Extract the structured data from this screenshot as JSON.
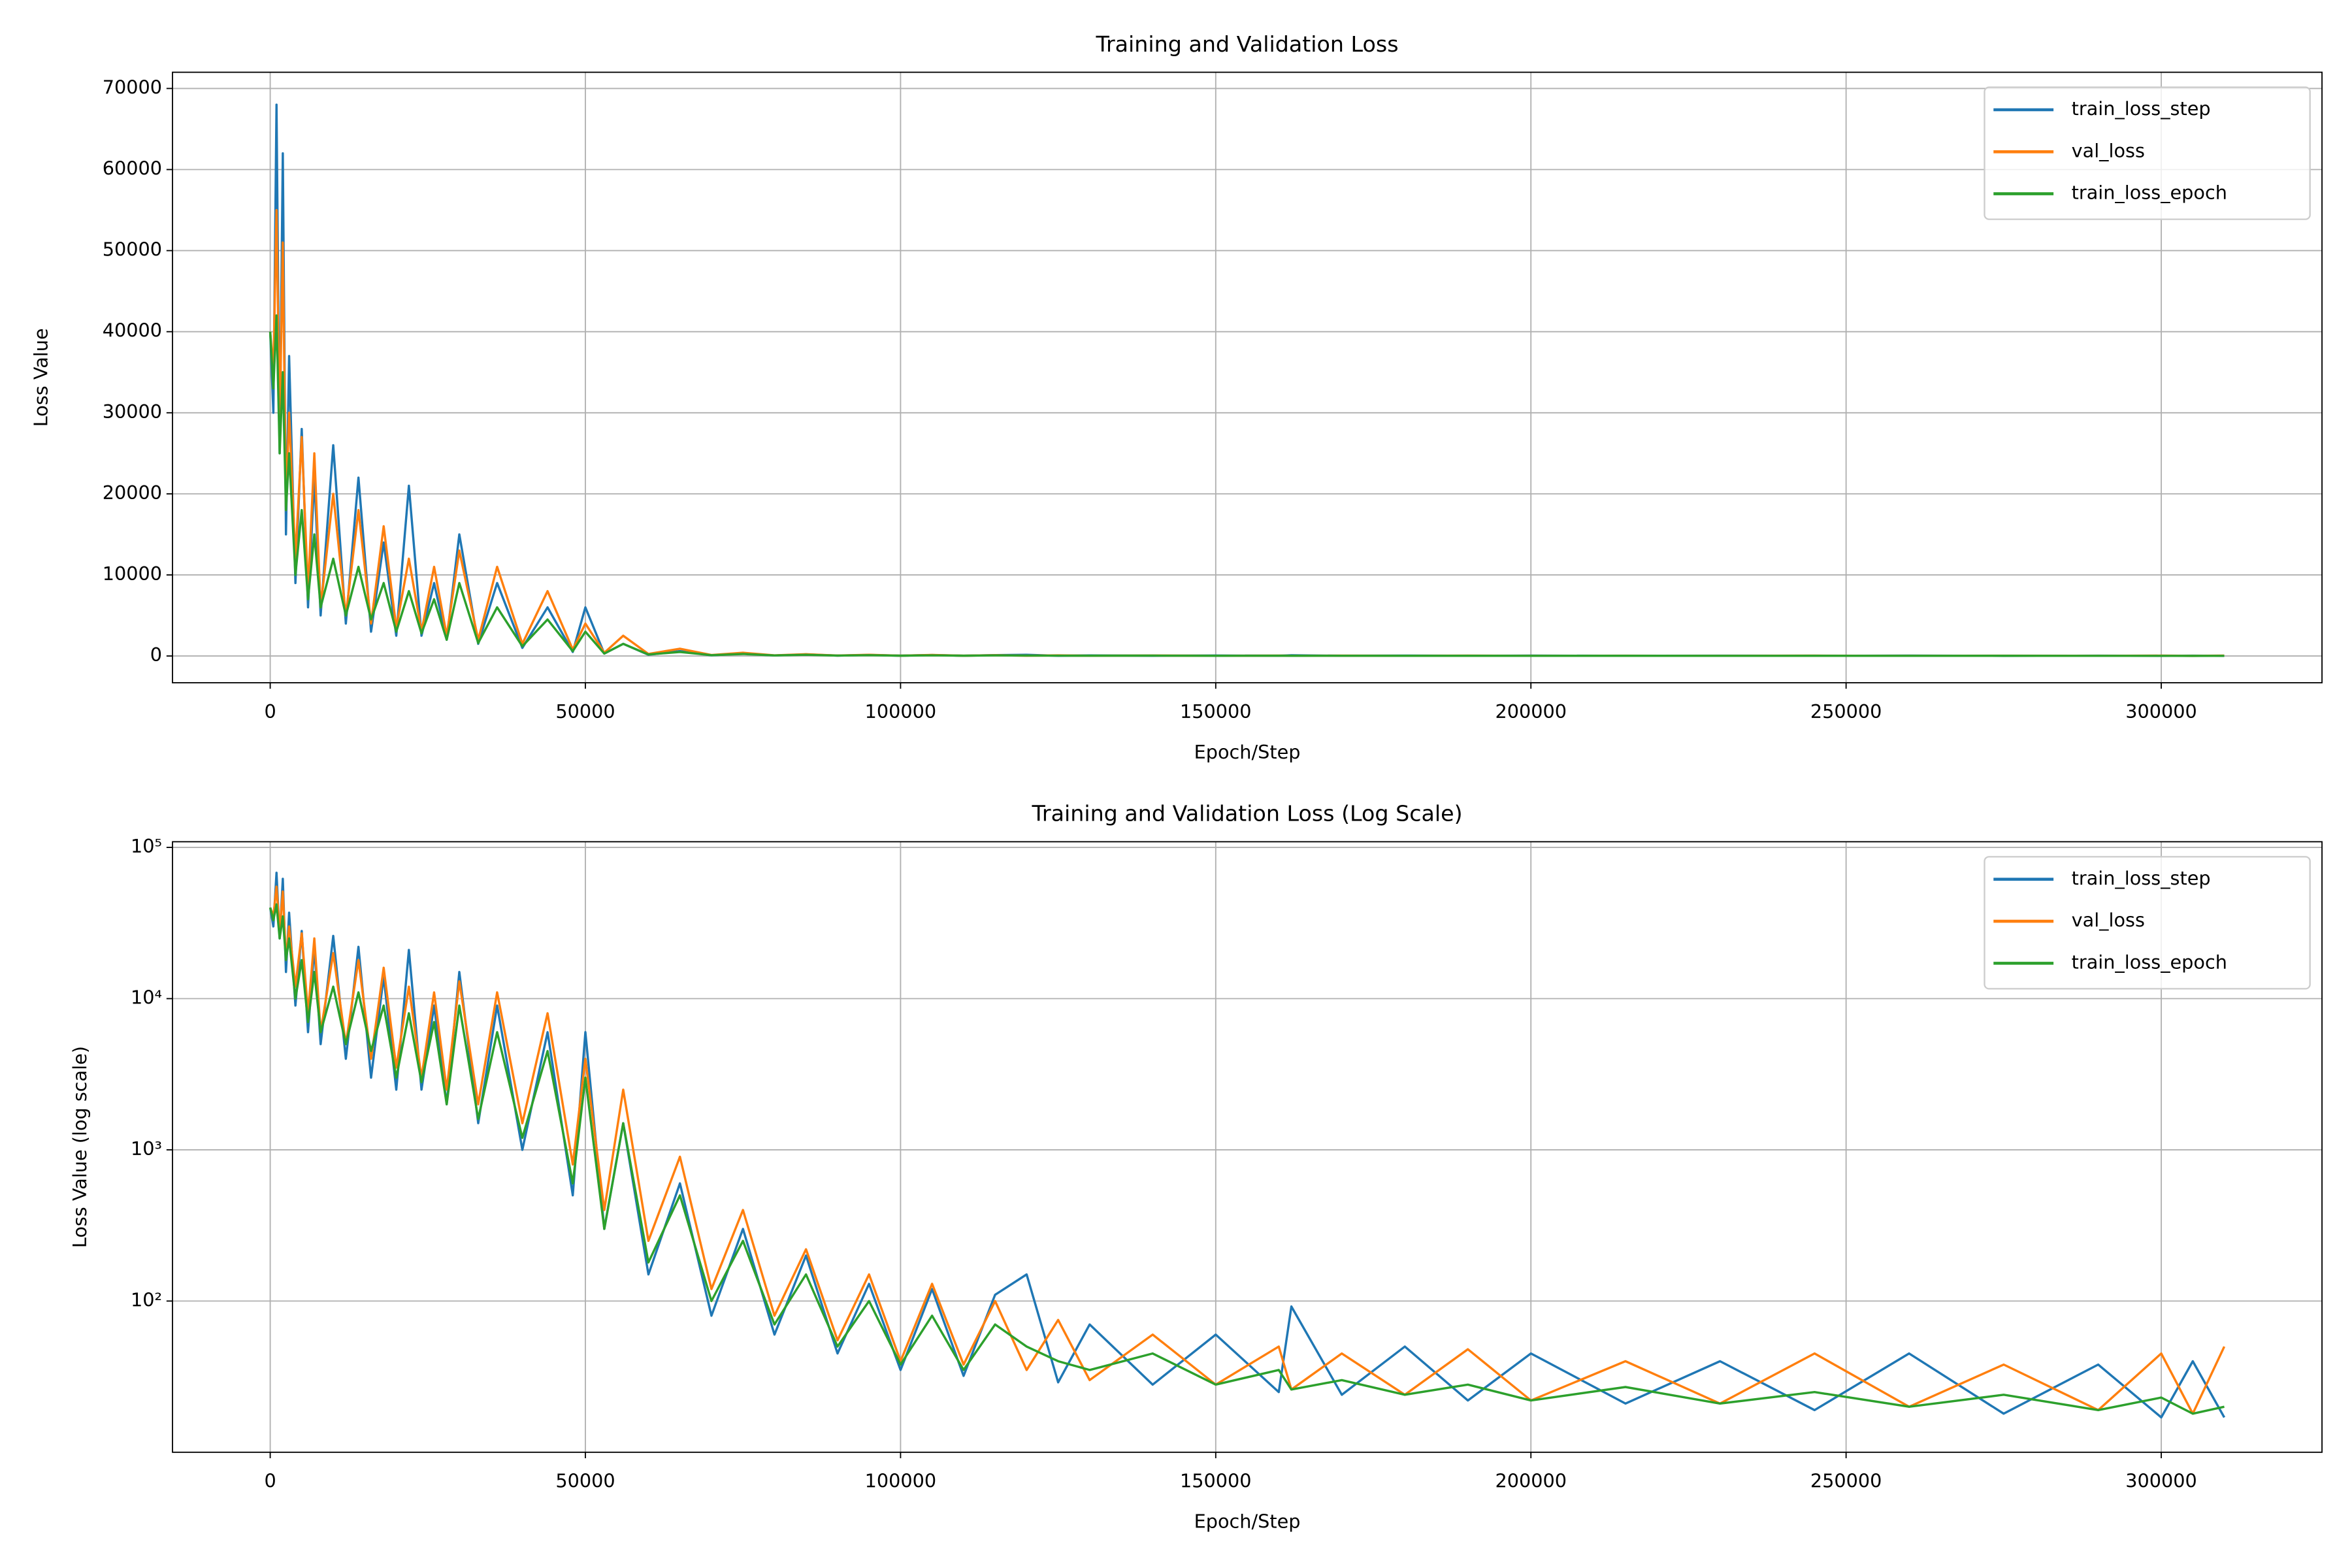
{
  "chart_data": [
    {
      "type": "line",
      "title": "Training and Validation Loss",
      "x_label": "Epoch/Step",
      "y_label": "Loss Value",
      "yscale": "linear",
      "grid": true,
      "legend": "upper right",
      "xlim": [
        -15500,
        325500
      ],
      "xticks": [
        0,
        50000,
        100000,
        150000,
        200000,
        250000,
        300000
      ],
      "ylim": [
        -3300,
        72000
      ],
      "yticks": [
        0,
        10000,
        20000,
        30000,
        40000,
        50000,
        60000,
        70000
      ],
      "x": [
        0,
        500,
        1000,
        1500,
        2000,
        2500,
        3000,
        4000,
        5000,
        6000,
        7000,
        8000,
        10000,
        12000,
        14000,
        16000,
        18000,
        20000,
        22000,
        24000,
        26000,
        28000,
        30000,
        33000,
        36000,
        40000,
        44000,
        48000,
        50000,
        53000,
        56000,
        60000,
        65000,
        70000,
        75000,
        80000,
        85000,
        90000,
        95000,
        100000,
        105000,
        110000,
        115000,
        120000,
        125000,
        130000,
        140000,
        150000,
        160000,
        162000,
        170000,
        180000,
        190000,
        200000,
        215000,
        230000,
        245000,
        260000,
        275000,
        290000,
        300000,
        305000,
        310000
      ],
      "series": [
        {
          "name": "train_loss_step",
          "color": "#1f77b4",
          "values": [
            40000,
            30000,
            68000,
            25000,
            62000,
            15000,
            37000,
            9000,
            28000,
            6000,
            22000,
            5000,
            26000,
            4000,
            22000,
            3000,
            14000,
            2500,
            21000,
            2500,
            9000,
            2000,
            15000,
            1500,
            9000,
            1000,
            6000,
            500,
            6000,
            300,
            1500,
            150,
            600,
            80,
            300,
            60,
            200,
            45,
            130,
            35,
            120,
            32,
            110,
            150,
            29,
            70,
            28,
            60,
            25,
            92,
            24,
            50,
            22,
            45,
            21,
            40,
            19,
            45,
            18,
            38,
            17,
            40,
            17
          ]
        },
        {
          "name": "val_loss",
          "color": "#ff7f0e",
          "values": [
            40000,
            35000,
            55000,
            28000,
            51000,
            18000,
            30000,
            12000,
            27000,
            8000,
            25000,
            6000,
            20000,
            5000,
            18000,
            4000,
            16000,
            3500,
            12000,
            3000,
            11000,
            2500,
            13000,
            2000,
            11000,
            1500,
            8000,
            800,
            4000,
            400,
            2500,
            250,
            900,
            120,
            400,
            80,
            220,
            55,
            150,
            40,
            130,
            38,
            100,
            35,
            75,
            30,
            60,
            28,
            50,
            26,
            45,
            24,
            48,
            22,
            40,
            21,
            45,
            20,
            38,
            19,
            45,
            18,
            50
          ]
        },
        {
          "name": "train_loss_epoch",
          "color": "#2ca02c",
          "values": [
            40000,
            33000,
            42000,
            25000,
            35000,
            18000,
            25000,
            10000,
            18000,
            7000,
            15000,
            6000,
            12000,
            5000,
            11000,
            4500,
            9000,
            3000,
            8000,
            2800,
            7000,
            2000,
            9000,
            1600,
            6000,
            1200,
            4500,
            600,
            3000,
            300,
            1500,
            180,
            500,
            100,
            250,
            70,
            150,
            50,
            100,
            38,
            80,
            35,
            70,
            50,
            40,
            35,
            45,
            28,
            35,
            26,
            30,
            24,
            28,
            22,
            27,
            21,
            25,
            20,
            24,
            19,
            23,
            18,
            20
          ]
        }
      ]
    },
    {
      "type": "line",
      "title": "Training and Validation Loss (Log Scale)",
      "x_label": "Epoch/Step",
      "y_label": "Loss Value (log scale)",
      "yscale": "log",
      "grid": true,
      "legend": "upper right",
      "xlim": [
        -15500,
        325500
      ],
      "xticks": [
        0,
        50000,
        100000,
        150000,
        200000,
        250000,
        300000
      ],
      "ylim": [
        10,
        109000
      ],
      "yticks": [
        {
          "value": 100,
          "label": "10²"
        },
        {
          "value": 1000,
          "label": "10³"
        },
        {
          "value": 10000,
          "label": "10⁴"
        },
        {
          "value": 100000,
          "label": "10⁵"
        }
      ],
      "x": [
        0,
        500,
        1000,
        1500,
        2000,
        2500,
        3000,
        4000,
        5000,
        6000,
        7000,
        8000,
        10000,
        12000,
        14000,
        16000,
        18000,
        20000,
        22000,
        24000,
        26000,
        28000,
        30000,
        33000,
        36000,
        40000,
        44000,
        48000,
        50000,
        53000,
        56000,
        60000,
        65000,
        70000,
        75000,
        80000,
        85000,
        90000,
        95000,
        100000,
        105000,
        110000,
        115000,
        120000,
        125000,
        130000,
        140000,
        150000,
        160000,
        162000,
        170000,
        180000,
        190000,
        200000,
        215000,
        230000,
        245000,
        260000,
        275000,
        290000,
        300000,
        305000,
        310000
      ],
      "series": [
        {
          "name": "train_loss_step",
          "color": "#1f77b4",
          "values": [
            40000,
            30000,
            68000,
            25000,
            62000,
            15000,
            37000,
            9000,
            28000,
            6000,
            22000,
            5000,
            26000,
            4000,
            22000,
            3000,
            14000,
            2500,
            21000,
            2500,
            9000,
            2000,
            15000,
            1500,
            9000,
            1000,
            6000,
            500,
            6000,
            300,
            1500,
            150,
            600,
            80,
            300,
            60,
            200,
            45,
            130,
            35,
            120,
            32,
            110,
            150,
            29,
            70,
            28,
            60,
            25,
            92,
            24,
            50,
            22,
            45,
            21,
            40,
            19,
            45,
            18,
            38,
            17,
            40,
            17
          ]
        },
        {
          "name": "val_loss",
          "color": "#ff7f0e",
          "values": [
            40000,
            35000,
            55000,
            28000,
            51000,
            18000,
            30000,
            12000,
            27000,
            8000,
            25000,
            6000,
            20000,
            5000,
            18000,
            4000,
            16000,
            3500,
            12000,
            3000,
            11000,
            2500,
            13000,
            2000,
            11000,
            1500,
            8000,
            800,
            4000,
            400,
            2500,
            250,
            900,
            120,
            400,
            80,
            220,
            55,
            150,
            40,
            130,
            38,
            100,
            35,
            75,
            30,
            60,
            28,
            50,
            26,
            45,
            24,
            48,
            22,
            40,
            21,
            45,
            20,
            38,
            19,
            45,
            18,
            50
          ]
        },
        {
          "name": "train_loss_epoch",
          "color": "#2ca02c",
          "values": [
            40000,
            33000,
            42000,
            25000,
            35000,
            18000,
            25000,
            10000,
            18000,
            7000,
            15000,
            6000,
            12000,
            5000,
            11000,
            4500,
            9000,
            3000,
            8000,
            2800,
            7000,
            2000,
            9000,
            1600,
            6000,
            1200,
            4500,
            600,
            3000,
            300,
            1500,
            180,
            500,
            100,
            250,
            70,
            150,
            50,
            100,
            38,
            80,
            35,
            70,
            50,
            40,
            35,
            45,
            28,
            35,
            26,
            30,
            24,
            28,
            22,
            27,
            21,
            25,
            20,
            24,
            19,
            23,
            18,
            20
          ]
        }
      ]
    }
  ]
}
